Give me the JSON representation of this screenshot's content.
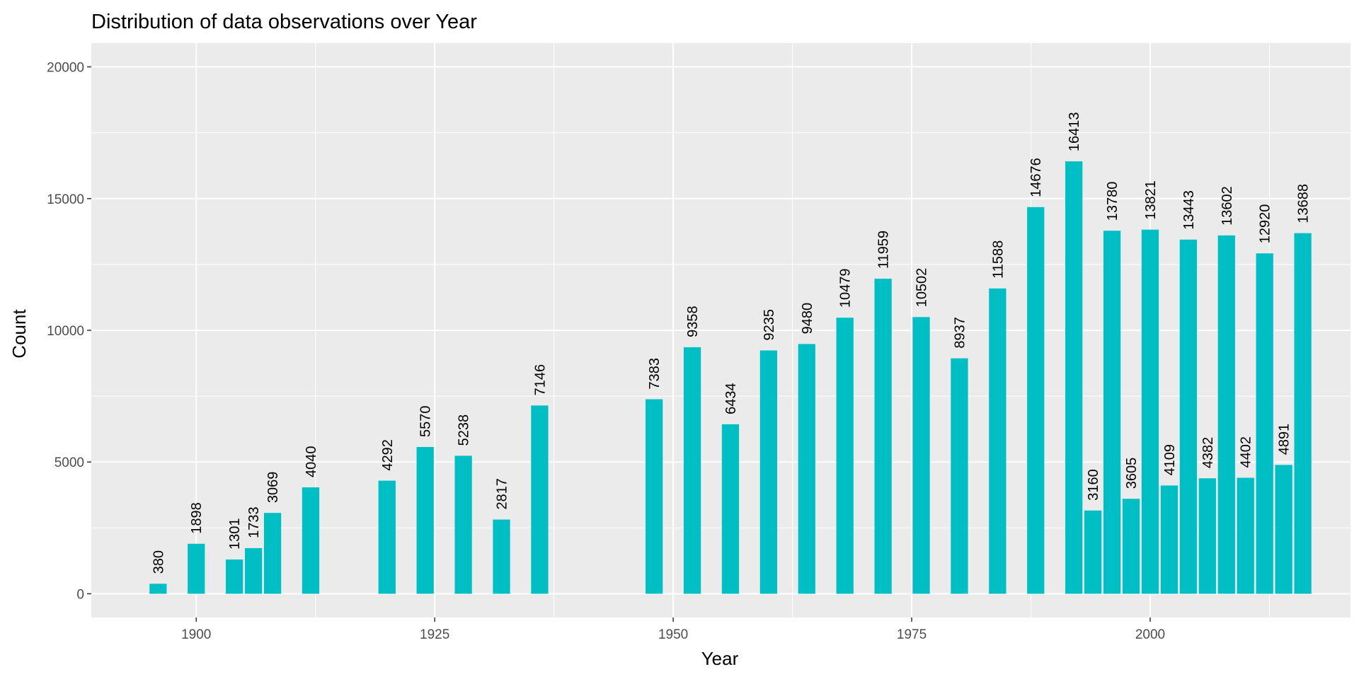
{
  "chart_data": {
    "type": "bar",
    "title": "Distribution of data observations over Year",
    "xlabel": "Year",
    "ylabel": "Count",
    "xlim": [
      1889,
      2021
    ],
    "ylim": [
      -900,
      20900
    ],
    "x_ticks": [
      1900,
      1925,
      1950,
      1975,
      2000
    ],
    "y_ticks": [
      0,
      5000,
      10000,
      15000,
      20000
    ],
    "grid": true,
    "legend": "none",
    "bar_color": "#00BFC4",
    "panel_color": "#EBEBEB",
    "grid_color": "#FFFFFF",
    "x": [
      1896,
      1900,
      1904,
      1906,
      1908,
      1912,
      1920,
      1924,
      1928,
      1932,
      1936,
      1948,
      1952,
      1956,
      1960,
      1964,
      1968,
      1972,
      1976,
      1980,
      1984,
      1988,
      1992,
      1994,
      1996,
      1998,
      2000,
      2002,
      2004,
      2006,
      2008,
      2010,
      2012,
      2014,
      2016
    ],
    "values": [
      380,
      1898,
      1301,
      1733,
      3069,
      4040,
      4292,
      5570,
      5238,
      2817,
      7146,
      7383,
      9358,
      6434,
      9235,
      9480,
      10479,
      11959,
      10502,
      8937,
      11588,
      14676,
      16413,
      3160,
      13780,
      3605,
      13821,
      4109,
      13443,
      4382,
      13602,
      4402,
      12920,
      4891,
      13688
    ]
  }
}
